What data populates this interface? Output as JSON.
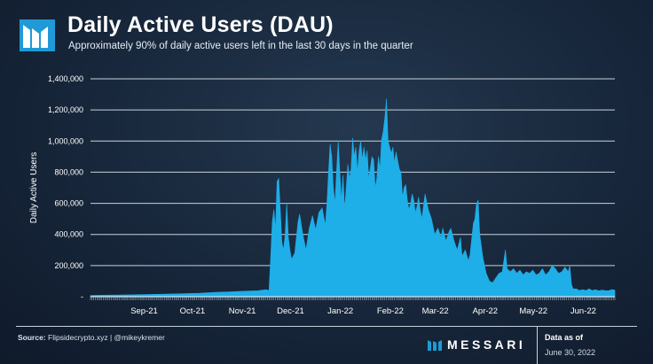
{
  "header": {
    "title": "Daily Active Users (DAU)",
    "subtitle": "Approximately 90% of daily active users left in the last 30 days in the quarter"
  },
  "footer": {
    "source_label": "Source:",
    "source_text": "Flipsidecrypto.xyz | @mikeykremer",
    "brand": "MESSARI",
    "as_of_label": "Data as of",
    "as_of_date": "June 30, 2022"
  },
  "colors": {
    "accent": "#1eaee8",
    "background": "#17263a",
    "grid": "#c9d2dc"
  },
  "icons": {
    "logo": "messari-logo-icon",
    "brand_mark": "messari-mark-icon"
  },
  "chart_data": {
    "type": "area",
    "title": "Daily Active Users (DAU)",
    "xlabel": "",
    "ylabel": "Daily Active Users",
    "ylim": [
      0,
      1400000
    ],
    "yticks": [
      0,
      200000,
      400000,
      600000,
      800000,
      1000000,
      1200000,
      1400000
    ],
    "ytick_labels": [
      "-",
      "200,000",
      "400,000",
      "600,000",
      "800,000",
      "1,000,000",
      "1,200,000",
      "1,400,000"
    ],
    "xlim": [
      "2021-08-08",
      "2022-06-30"
    ],
    "xticks": [
      "2021-09-01",
      "2021-10-01",
      "2021-11-01",
      "2021-12-01",
      "2022-01-01",
      "2022-02-01",
      "2022-03-01",
      "2022-04-01",
      "2022-05-01",
      "2022-06-01"
    ],
    "xtick_labels": [
      "Sep-21",
      "Oct-21",
      "Nov-21",
      "Dec-21",
      "Jan-22",
      "Feb-22",
      "Mar-22",
      "Apr-22",
      "May-22",
      "Jun-22"
    ],
    "grid": true,
    "legend": "none",
    "series": [
      {
        "values": [
          [
            "2021-08-08",
            8000
          ],
          [
            "2021-08-20",
            10000
          ],
          [
            "2021-09-01",
            12000
          ],
          [
            "2021-09-15",
            15000
          ],
          [
            "2021-10-01",
            18000
          ],
          [
            "2021-10-15",
            22000
          ],
          [
            "2021-10-25",
            28000
          ],
          [
            "2021-11-01",
            30000
          ],
          [
            "2021-11-10",
            35000
          ],
          [
            "2021-11-20",
            38000
          ],
          [
            "2021-11-25",
            45000
          ],
          [
            "2021-11-27",
            40000
          ],
          [
            "2021-11-28",
            240000
          ],
          [
            "2021-11-29",
            480000
          ],
          [
            "2021-11-30",
            560000
          ],
          [
            "2021-12-01",
            430000
          ],
          [
            "2021-12-02",
            740000
          ],
          [
            "2021-12-03",
            760000
          ],
          [
            "2021-12-04",
            560000
          ],
          [
            "2021-12-05",
            350000
          ],
          [
            "2021-12-06",
            300000
          ],
          [
            "2021-12-07",
            400000
          ],
          [
            "2021-12-08",
            600000
          ],
          [
            "2021-12-09",
            380000
          ],
          [
            "2021-12-10",
            300000
          ],
          [
            "2021-12-11",
            240000
          ],
          [
            "2021-12-13",
            280000
          ],
          [
            "2021-12-15",
            480000
          ],
          [
            "2021-12-16",
            530000
          ],
          [
            "2021-12-18",
            400000
          ],
          [
            "2021-12-20",
            300000
          ],
          [
            "2021-12-22",
            440000
          ],
          [
            "2021-12-24",
            520000
          ],
          [
            "2021-12-26",
            430000
          ],
          [
            "2021-12-28",
            540000
          ],
          [
            "2021-12-30",
            570000
          ],
          [
            "2022-01-01",
            460000
          ],
          [
            "2022-01-02",
            600000
          ],
          [
            "2022-01-03",
            800000
          ],
          [
            "2022-01-04",
            980000
          ],
          [
            "2022-01-05",
            900000
          ],
          [
            "2022-01-06",
            700000
          ],
          [
            "2022-01-07",
            600000
          ],
          [
            "2022-01-08",
            810000
          ],
          [
            "2022-01-09",
            1000000
          ],
          [
            "2022-01-10",
            800000
          ],
          [
            "2022-01-11",
            620000
          ],
          [
            "2022-01-12",
            780000
          ],
          [
            "2022-01-13",
            560000
          ],
          [
            "2022-01-14",
            700000
          ],
          [
            "2022-01-15",
            850000
          ],
          [
            "2022-01-16",
            760000
          ],
          [
            "2022-01-17",
            820000
          ],
          [
            "2022-01-18",
            1020000
          ],
          [
            "2022-01-19",
            900000
          ],
          [
            "2022-01-20",
            960000
          ],
          [
            "2022-01-21",
            800000
          ],
          [
            "2022-01-22",
            940000
          ],
          [
            "2022-01-23",
            1000000
          ],
          [
            "2022-01-24",
            880000
          ],
          [
            "2022-01-25",
            960000
          ],
          [
            "2022-01-26",
            880000
          ],
          [
            "2022-01-27",
            940000
          ],
          [
            "2022-01-28",
            760000
          ],
          [
            "2022-01-29",
            830000
          ],
          [
            "2022-01-30",
            900000
          ],
          [
            "2022-01-31",
            880000
          ],
          [
            "2022-02-01",
            700000
          ],
          [
            "2022-02-02",
            760000
          ],
          [
            "2022-02-03",
            900000
          ],
          [
            "2022-02-04",
            820000
          ],
          [
            "2022-02-05",
            1010000
          ],
          [
            "2022-02-06",
            1060000
          ],
          [
            "2022-02-07",
            1150000
          ],
          [
            "2022-02-08",
            1270000
          ],
          [
            "2022-02-09",
            1000000
          ],
          [
            "2022-02-10",
            960000
          ],
          [
            "2022-02-11",
            920000
          ],
          [
            "2022-02-12",
            960000
          ],
          [
            "2022-02-13",
            860000
          ],
          [
            "2022-02-14",
            930000
          ],
          [
            "2022-02-15",
            870000
          ],
          [
            "2022-02-16",
            820000
          ],
          [
            "2022-02-17",
            800000
          ],
          [
            "2022-02-18",
            640000
          ],
          [
            "2022-02-19",
            700000
          ],
          [
            "2022-02-20",
            720000
          ],
          [
            "2022-02-21",
            620000
          ],
          [
            "2022-02-22",
            560000
          ],
          [
            "2022-02-23",
            600000
          ],
          [
            "2022-02-24",
            660000
          ],
          [
            "2022-02-25",
            620000
          ],
          [
            "2022-02-26",
            540000
          ],
          [
            "2022-02-27",
            580000
          ],
          [
            "2022-02-28",
            640000
          ],
          [
            "2022-03-01",
            560000
          ],
          [
            "2022-03-02",
            500000
          ],
          [
            "2022-03-03",
            580000
          ],
          [
            "2022-03-04",
            660000
          ],
          [
            "2022-03-06",
            560000
          ],
          [
            "2022-03-08",
            500000
          ],
          [
            "2022-03-10",
            400000
          ],
          [
            "2022-03-12",
            440000
          ],
          [
            "2022-03-14",
            380000
          ],
          [
            "2022-03-15",
            440000
          ],
          [
            "2022-03-17",
            360000
          ],
          [
            "2022-03-19",
            420000
          ],
          [
            "2022-03-20",
            440000
          ],
          [
            "2022-03-22",
            360000
          ],
          [
            "2022-03-24",
            300000
          ],
          [
            "2022-03-26",
            380000
          ],
          [
            "2022-03-27",
            260000
          ],
          [
            "2022-03-29",
            300000
          ],
          [
            "2022-03-31",
            230000
          ],
          [
            "2022-04-01",
            270000
          ],
          [
            "2022-04-03",
            470000
          ],
          [
            "2022-04-04",
            500000
          ],
          [
            "2022-04-05",
            600000
          ],
          [
            "2022-04-06",
            620000
          ],
          [
            "2022-04-07",
            400000
          ],
          [
            "2022-04-09",
            250000
          ],
          [
            "2022-04-11",
            150000
          ],
          [
            "2022-04-13",
            100000
          ],
          [
            "2022-04-15",
            90000
          ],
          [
            "2022-04-17",
            120000
          ],
          [
            "2022-04-19",
            150000
          ],
          [
            "2022-04-21",
            160000
          ],
          [
            "2022-04-23",
            300000
          ],
          [
            "2022-04-24",
            180000
          ],
          [
            "2022-04-26",
            160000
          ],
          [
            "2022-04-28",
            180000
          ],
          [
            "2022-04-30",
            150000
          ],
          [
            "2022-05-02",
            170000
          ],
          [
            "2022-05-04",
            140000
          ],
          [
            "2022-05-06",
            160000
          ],
          [
            "2022-05-08",
            150000
          ],
          [
            "2022-05-10",
            170000
          ],
          [
            "2022-05-12",
            140000
          ],
          [
            "2022-05-14",
            150000
          ],
          [
            "2022-05-16",
            180000
          ],
          [
            "2022-05-18",
            140000
          ],
          [
            "2022-05-20",
            160000
          ],
          [
            "2022-05-22",
            200000
          ],
          [
            "2022-05-24",
            180000
          ],
          [
            "2022-05-26",
            150000
          ],
          [
            "2022-05-28",
            160000
          ],
          [
            "2022-05-30",
            190000
          ],
          [
            "2022-06-01",
            160000
          ],
          [
            "2022-06-02",
            200000
          ],
          [
            "2022-06-03",
            80000
          ],
          [
            "2022-06-04",
            50000
          ],
          [
            "2022-06-06",
            50000
          ],
          [
            "2022-06-08",
            40000
          ],
          [
            "2022-06-10",
            45000
          ],
          [
            "2022-06-12",
            40000
          ],
          [
            "2022-06-14",
            50000
          ],
          [
            "2022-06-16",
            40000
          ],
          [
            "2022-06-18",
            45000
          ],
          [
            "2022-06-20",
            38000
          ],
          [
            "2022-06-22",
            42000
          ],
          [
            "2022-06-24",
            40000
          ],
          [
            "2022-06-26",
            38000
          ],
          [
            "2022-06-28",
            45000
          ],
          [
            "2022-06-30",
            42000
          ]
        ]
      }
    ]
  }
}
